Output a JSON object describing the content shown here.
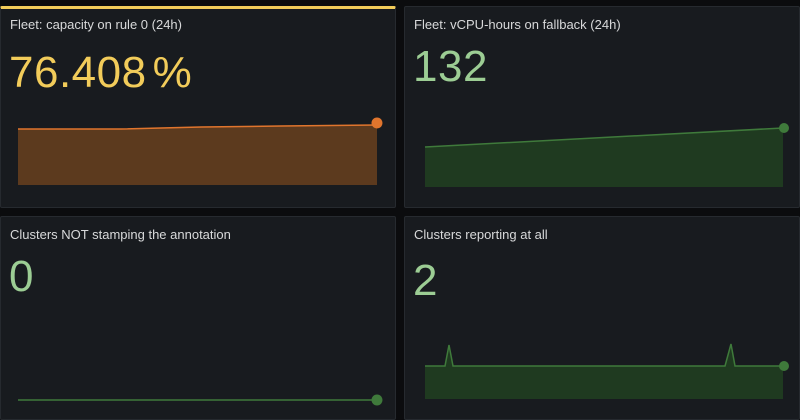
{
  "colors": {
    "background": "#0b0c0e",
    "panel": "#181b1f",
    "panel_border": "#262a2f",
    "highlight_border": "#f2cc5a",
    "title_text": "#d8d9da",
    "yellow": "#f2cc5a",
    "orange": "#e0752d",
    "orange_fill": "#5c3a1e",
    "green": "#73bf69",
    "green_text": "#9ccd94",
    "green_fill": "#1f3a20",
    "green_line": "#3f7a3b"
  },
  "panels": [
    {
      "title": "Fleet: capacity on rule 0 (24h)",
      "value": "76.408",
      "unit": "%",
      "color_key": "yellow",
      "sparkline": "orange"
    },
    {
      "title": "Fleet: vCPU-hours on fallback (24h)",
      "value": "132",
      "unit": "",
      "color_key": "green",
      "sparkline": "green-area"
    },
    {
      "title": "Clusters NOT stamping the annotation",
      "value": "0",
      "unit": "",
      "color_key": "green",
      "sparkline": "green-flat"
    },
    {
      "title": "Clusters reporting at all",
      "value": "2",
      "unit": "",
      "color_key": "green",
      "sparkline": "green-spikes"
    }
  ]
}
